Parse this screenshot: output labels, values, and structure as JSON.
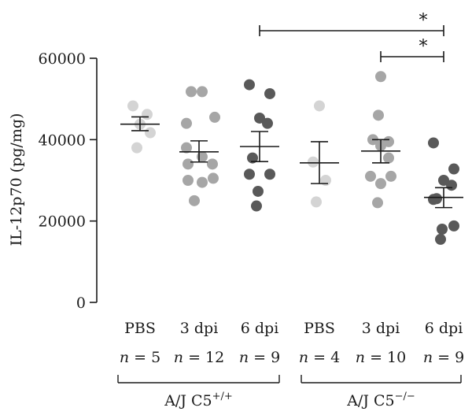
{
  "chart_data": {
    "type": "scatter",
    "ylabel": "IL-12p70 (pg/mg)",
    "ylim": [
      0,
      60000
    ],
    "yticks": [
      0,
      20000,
      40000,
      60000
    ],
    "ytick_labels": [
      "0",
      "20000",
      "40000",
      "60000"
    ],
    "grid": false,
    "groups": [
      {
        "label": "PBS",
        "n_label": "n = 5",
        "genotype": "A/J C5+/+",
        "color": "#d4d4d4",
        "values": [
          48300,
          46200,
          43800,
          41700,
          38000
        ],
        "mean": 43800,
        "sem_low": 42200,
        "sem_high": 45600
      },
      {
        "label": "3 dpi",
        "n_label": "n = 12",
        "genotype": "A/J C5+/+",
        "color": "#a6a6a6",
        "values": [
          51800,
          51800,
          45500,
          44000,
          38000,
          35800,
          34000,
          34000,
          30500,
          30000,
          29500,
          25000
        ],
        "mean": 37000,
        "sem_low": 34500,
        "sem_high": 39700
      },
      {
        "label": "6 dpi",
        "n_label": "n = 9",
        "genotype": "A/J C5+/+",
        "color": "#595959",
        "values": [
          53500,
          51300,
          45300,
          44000,
          35500,
          31500,
          31500,
          27300,
          23700
        ],
        "mean": 38300,
        "sem_low": 34600,
        "sem_high": 42000
      },
      {
        "label": "PBS",
        "n_label": "n = 4",
        "genotype": "A/J C5−/−",
        "color": "#d4d4d4",
        "values": [
          48300,
          34500,
          30000,
          24700
        ],
        "mean": 34300,
        "sem_low": 29200,
        "sem_high": 39500
      },
      {
        "label": "3 dpi",
        "n_label": "n = 10",
        "genotype": "A/J C5−/−",
        "color": "#a6a6a6",
        "values": [
          55500,
          46000,
          40000,
          39500,
          38500,
          35500,
          31000,
          31000,
          29200,
          24500
        ],
        "mean": 37200,
        "sem_low": 34300,
        "sem_high": 40000
      },
      {
        "label": "6 dpi",
        "n_label": "n = 9",
        "genotype": "A/J C5−/−",
        "color": "#595959",
        "values": [
          39200,
          32800,
          30000,
          28800,
          25500,
          25300,
          18800,
          18000,
          15500
        ],
        "mean": 25800,
        "sem_low": 23300,
        "sem_high": 28200
      }
    ],
    "genotype_groups": [
      {
        "label_base": "A/J C5",
        "label_sup": "+/+",
        "categories": [
          0,
          1,
          2
        ]
      },
      {
        "label_base": "A/J C5",
        "label_sup": "−/−",
        "categories": [
          3,
          4,
          5
        ]
      }
    ],
    "significance": [
      {
        "from": 2,
        "to": 5,
        "label": "*"
      },
      {
        "from": 4,
        "to": 5,
        "label": "*"
      }
    ]
  }
}
